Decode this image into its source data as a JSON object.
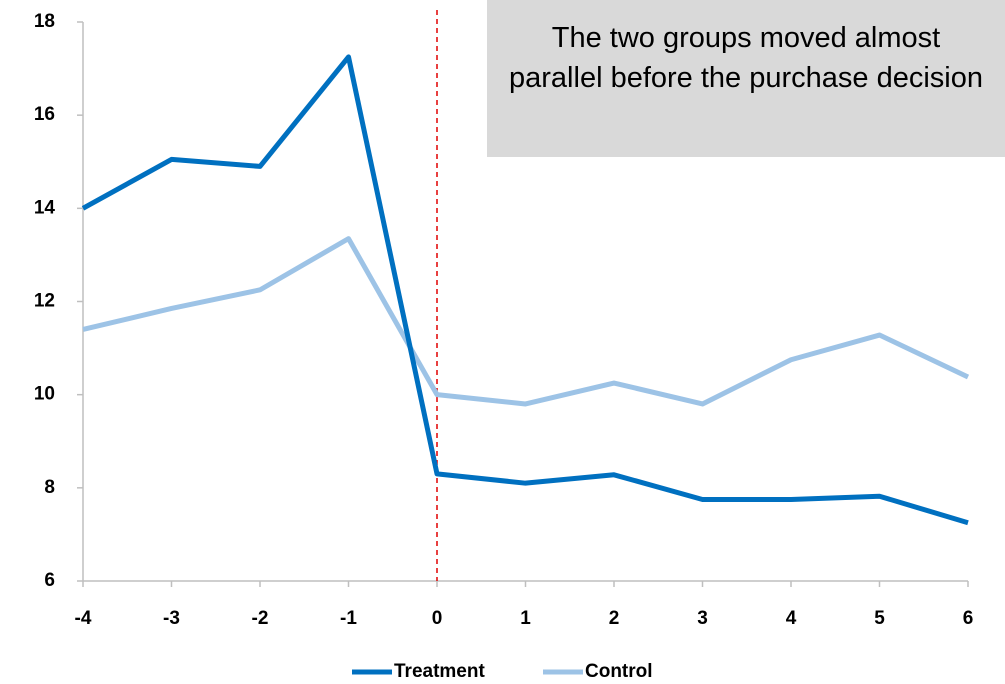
{
  "chart_data": {
    "type": "line",
    "annotation": "The two groups moved almost parallel before the purchase decision",
    "x": [
      -4,
      -3,
      -2,
      -1,
      0,
      1,
      2,
      3,
      4,
      5,
      6
    ],
    "series": [
      {
        "name": "Treatment",
        "color": "#0070c0",
        "values": [
          14.0,
          15.05,
          14.9,
          17.25,
          8.3,
          8.1,
          8.28,
          7.75,
          7.75,
          7.82,
          7.25
        ]
      },
      {
        "name": "Control",
        "color": "#9dc3e6",
        "values": [
          11.4,
          11.85,
          12.25,
          13.35,
          10.0,
          9.8,
          10.25,
          9.8,
          10.75,
          11.28,
          10.38
        ]
      }
    ],
    "xlim": [
      -4,
      6
    ],
    "xticks": [
      -4,
      -3,
      -2,
      -1,
      0,
      1,
      2,
      3,
      4,
      5,
      6
    ],
    "ylim": [
      6,
      18
    ],
    "yticks": [
      6,
      8,
      10,
      12,
      14,
      16,
      18
    ],
    "reference_line": {
      "x": 0,
      "color": "#e00000",
      "style": "dashed"
    },
    "legend": "bottom"
  }
}
